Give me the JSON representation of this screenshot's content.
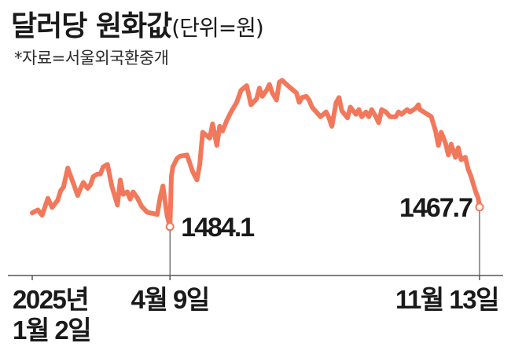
{
  "header": {
    "title": "달러당 원화값",
    "unit": "(단위=원)",
    "source": "*자료=서울외국환중개"
  },
  "colors": {
    "line": "#f2785b",
    "text": "#1a1a1a",
    "axis": "#555555",
    "marker_fill": "#ffffff"
  },
  "chart_data": {
    "type": "line",
    "title": "달러당 원화값",
    "ylabel": "",
    "xlabel": "",
    "ylim_inverted": true,
    "ylim": [
      1360,
      1500
    ],
    "x_ticks": [
      {
        "date": "2025-01-02",
        "line1": "2025년",
        "line2": "1월 2일"
      },
      {
        "date": "2025-04-09",
        "line1": "4월 9일",
        "line2": ""
      },
      {
        "date": "2025-11-13",
        "line1": "11월 13일",
        "line2": ""
      }
    ],
    "annotations": [
      {
        "date": "2025-04-09",
        "value": 1484.1,
        "label": "1484.1"
      },
      {
        "date": "2025-11-13",
        "value": 1467.7,
        "label": "1467.7"
      }
    ],
    "series": [
      {
        "points": [
          [
            "2025-01-02",
            1472.5
          ],
          [
            "2025-01-06",
            1470.0
          ],
          [
            "2025-01-09",
            1474.5
          ],
          [
            "2025-01-13",
            1460.3
          ],
          [
            "2025-01-16",
            1468.0
          ],
          [
            "2025-01-20",
            1461.8
          ],
          [
            "2025-01-22",
            1454.0
          ],
          [
            "2025-01-24",
            1451.0
          ],
          [
            "2025-01-27",
            1435.0
          ],
          [
            "2025-01-31",
            1448.0
          ],
          [
            "2025-02-03",
            1458.0
          ],
          [
            "2025-02-05",
            1452.0
          ],
          [
            "2025-02-07",
            1447.0
          ],
          [
            "2025-02-10",
            1452.0
          ],
          [
            "2025-02-12",
            1449.0
          ],
          [
            "2025-02-14",
            1442.0
          ],
          [
            "2025-02-17",
            1440.0
          ],
          [
            "2025-02-19",
            1440.0
          ],
          [
            "2025-02-21",
            1434.0
          ],
          [
            "2025-02-24",
            1432.0
          ],
          [
            "2025-02-27",
            1450.0
          ],
          [
            "2025-03-03",
            1466.0
          ],
          [
            "2025-03-05",
            1445.0
          ],
          [
            "2025-03-07",
            1457.0
          ],
          [
            "2025-03-10",
            1455.0
          ],
          [
            "2025-03-12",
            1461.0
          ],
          [
            "2025-03-14",
            1455.0
          ],
          [
            "2025-03-17",
            1460.0
          ],
          [
            "2025-03-20",
            1467.0
          ],
          [
            "2025-03-24",
            1472.0
          ],
          [
            "2025-03-28",
            1473.0
          ],
          [
            "2025-03-31",
            1474.0
          ],
          [
            "2025-04-02",
            1460.0
          ],
          [
            "2025-04-04",
            1450.0
          ],
          [
            "2025-04-07",
            1475.0
          ],
          [
            "2025-04-09",
            1484.1
          ],
          [
            "2025-04-10",
            1442.0
          ],
          [
            "2025-04-11",
            1434.0
          ],
          [
            "2025-04-14",
            1427.0
          ],
          [
            "2025-04-16",
            1425.0
          ],
          [
            "2025-04-21",
            1424.0
          ],
          [
            "2025-04-25",
            1438.0
          ],
          [
            "2025-04-28",
            1445.0
          ],
          [
            "2025-04-30",
            1432.0
          ],
          [
            "2025-05-02",
            1405.0
          ],
          [
            "2025-05-07",
            1410.0
          ],
          [
            "2025-05-09",
            1398.0
          ],
          [
            "2025-05-12",
            1416.0
          ],
          [
            "2025-05-14",
            1400.0
          ],
          [
            "2025-05-16",
            1404.0
          ],
          [
            "2025-05-19",
            1395.0
          ],
          [
            "2025-05-22",
            1388.0
          ],
          [
            "2025-05-26",
            1380.0
          ],
          [
            "2025-05-29",
            1370.0
          ],
          [
            "2025-06-02",
            1366.0
          ],
          [
            "2025-06-05",
            1382.0
          ],
          [
            "2025-06-09",
            1377.0
          ],
          [
            "2025-06-11",
            1368.0
          ],
          [
            "2025-06-13",
            1375.0
          ],
          [
            "2025-06-16",
            1370.0
          ],
          [
            "2025-06-18",
            1365.0
          ],
          [
            "2025-06-20",
            1372.0
          ],
          [
            "2025-06-23",
            1378.0
          ],
          [
            "2025-06-25",
            1363.0
          ],
          [
            "2025-06-27",
            1361.5
          ],
          [
            "2025-07-01",
            1366.0
          ],
          [
            "2025-07-03",
            1368.0
          ],
          [
            "2025-07-07",
            1372.0
          ],
          [
            "2025-07-09",
            1380.0
          ],
          [
            "2025-07-11",
            1376.0
          ],
          [
            "2025-07-14",
            1375.0
          ],
          [
            "2025-07-16",
            1378.0
          ],
          [
            "2025-07-18",
            1384.0
          ],
          [
            "2025-07-21",
            1388.0
          ],
          [
            "2025-07-24",
            1392.0
          ],
          [
            "2025-07-28",
            1388.0
          ],
          [
            "2025-07-30",
            1393.0
          ],
          [
            "2025-08-01",
            1400.0
          ],
          [
            "2025-08-04",
            1380.0
          ],
          [
            "2025-08-06",
            1376.0
          ],
          [
            "2025-08-08",
            1387.0
          ],
          [
            "2025-08-12",
            1393.0
          ],
          [
            "2025-08-14",
            1384.0
          ],
          [
            "2025-08-18",
            1390.0
          ],
          [
            "2025-08-20",
            1386.0
          ],
          [
            "2025-08-22",
            1392.0
          ],
          [
            "2025-08-25",
            1388.0
          ],
          [
            "2025-08-27",
            1392.0
          ],
          [
            "2025-08-29",
            1386.0
          ],
          [
            "2025-09-01",
            1392.0
          ],
          [
            "2025-09-03",
            1397.0
          ],
          [
            "2025-09-05",
            1386.0
          ],
          [
            "2025-09-08",
            1388.0
          ],
          [
            "2025-09-11",
            1392.0
          ],
          [
            "2025-09-15",
            1392.0
          ],
          [
            "2025-09-17",
            1388.0
          ],
          [
            "2025-09-19",
            1390.0
          ],
          [
            "2025-09-23",
            1386.0
          ],
          [
            "2025-09-25",
            1388.0
          ],
          [
            "2025-09-29",
            1385.0
          ],
          [
            "2025-10-01",
            1382.0
          ],
          [
            "2025-10-02",
            1386.0
          ],
          [
            "2025-10-10",
            1392.0
          ],
          [
            "2025-10-13",
            1404.0
          ],
          [
            "2025-10-15",
            1416.0
          ],
          [
            "2025-10-17",
            1405.0
          ],
          [
            "2025-10-20",
            1414.0
          ],
          [
            "2025-10-22",
            1424.0
          ],
          [
            "2025-10-24",
            1415.0
          ],
          [
            "2025-10-27",
            1426.0
          ],
          [
            "2025-10-29",
            1418.0
          ],
          [
            "2025-10-31",
            1428.0
          ],
          [
            "2025-11-03",
            1426.0
          ],
          [
            "2025-11-05",
            1436.0
          ],
          [
            "2025-11-07",
            1442.0
          ],
          [
            "2025-11-10",
            1454.0
          ],
          [
            "2025-11-12",
            1460.0
          ],
          [
            "2025-11-13",
            1467.7
          ]
        ]
      }
    ]
  }
}
